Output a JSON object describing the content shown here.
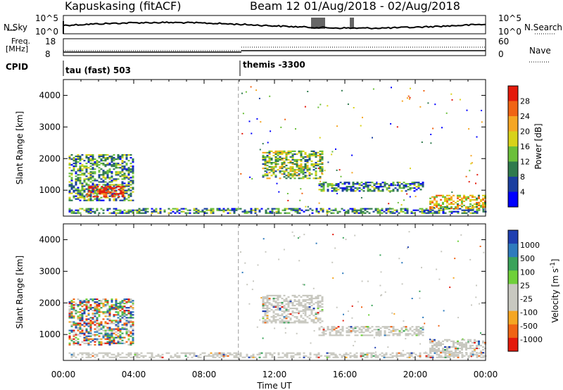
{
  "header": {
    "station": "Kapuskasing (fitACF)",
    "beam_info": "Beam 12  01/Aug/2018 - 02/Aug/2018"
  },
  "top_panels": {
    "nsky_label": "N.Sky",
    "nsky_ticks": [
      "10^5",
      "10^0"
    ],
    "nsearch_label": "N.Search",
    "nsearch_ticks": [
      "10^5",
      "10^0"
    ],
    "freq_label": "Freq.",
    "freq_unit": "[MHz]",
    "freq_ticks": [
      "18",
      "8"
    ],
    "nave_label": "Nave",
    "nave_ticks": [
      "60",
      "0"
    ],
    "cpid_label": "CPID",
    "cpid_entries": [
      "tau (fast) 503",
      "themis -3300"
    ]
  },
  "chart_data": [
    {
      "type": "heatmap",
      "name": "power-panel",
      "ylabel": "Slant Range [km]",
      "y_ticks": [
        "4000",
        "3000",
        "2000",
        "1000"
      ],
      "ylim": [
        180,
        4500
      ],
      "xlim_hours": [
        0,
        24
      ],
      "colorbar_label": "Power [dB]",
      "colorbar_ticks": [
        "28",
        "24",
        "20",
        "16",
        "12",
        "8",
        "4"
      ],
      "colorbar_colors": [
        "#0000ff",
        "#1b3fa0",
        "#2f7a4d",
        "#6bbf3a",
        "#d8d21a",
        "#f5a623",
        "#f06414",
        "#e41a0c"
      ],
      "echo_regions": [
        {
          "t0": 0.3,
          "t1": 4.0,
          "r0": 700,
          "r1": 2150,
          "level": 0.35
        },
        {
          "t0": 1.3,
          "t1": 3.4,
          "r0": 820,
          "r1": 1150,
          "level": 0.9
        },
        {
          "t0": 0.3,
          "t1": 24,
          "r0": 300,
          "r1": 460,
          "level": 0.3
        },
        {
          "t0": 11.3,
          "t1": 14.7,
          "r0": 1400,
          "r1": 2300,
          "level": 0.45
        },
        {
          "t0": 14.5,
          "t1": 20.5,
          "r0": 1000,
          "r1": 1300,
          "level": 0.3
        },
        {
          "t0": 20.8,
          "t1": 24,
          "r0": 450,
          "r1": 900,
          "level": 0.6
        }
      ]
    },
    {
      "type": "heatmap",
      "name": "velocity-panel",
      "ylabel": "Slant Range [km]",
      "y_ticks": [
        "4000",
        "3000",
        "2000",
        "1000"
      ],
      "ylim": [
        180,
        4500
      ],
      "xlim_hours": [
        0,
        24
      ],
      "xlabel": "Time UT",
      "x_ticks": [
        "00:00",
        "04:00",
        "08:00",
        "12:00",
        "16:00",
        "20:00",
        "00:00"
      ],
      "colorbar_label": "Velocity [m s",
      "colorbar_unit_exp": "-1",
      "colorbar_ticks": [
        "1000",
        "500",
        "100",
        "25",
        "-25",
        "-100",
        "-500",
        "-1000"
      ],
      "colorbar_colors": [
        "#1f3fb0",
        "#2e7bbd",
        "#3aa35a",
        "#6fd03a",
        "#c8c8c0",
        "#c8c8c0",
        "#f5a623",
        "#f06414",
        "#e41a0c"
      ],
      "echo_regions": [
        {
          "t0": 0.3,
          "t1": 4.0,
          "r0": 700,
          "r1": 2150,
          "kind": "mixed"
        },
        {
          "t0": 0.3,
          "t1": 24,
          "r0": 300,
          "r1": 460,
          "kind": "ground"
        },
        {
          "t0": 11.3,
          "t1": 14.7,
          "r0": 1400,
          "r1": 2300,
          "kind": "ground"
        },
        {
          "t0": 14.5,
          "t1": 20.5,
          "r0": 1000,
          "r1": 1300,
          "kind": "ground"
        },
        {
          "t0": 20.8,
          "t1": 24,
          "r0": 450,
          "r1": 900,
          "kind": "ground"
        }
      ]
    }
  ]
}
